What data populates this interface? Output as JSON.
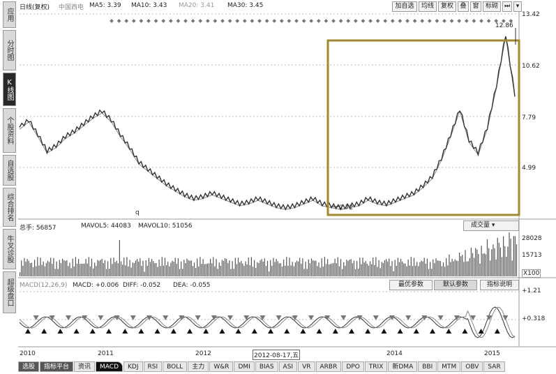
{
  "left_nav": [
    {
      "label": "应用",
      "active": false
    },
    {
      "label": "分时图",
      "active": false
    },
    {
      "label": "K线图",
      "active": true
    },
    {
      "label": "个股资料",
      "active": false
    },
    {
      "label": "自选股",
      "active": false
    },
    {
      "label": "综合排名",
      "active": false
    },
    {
      "label": "牛叉诊股",
      "active": false
    },
    {
      "label": "超级盘口",
      "active": false
    }
  ],
  "price_header": {
    "period": "日线(复权)",
    "name": "中国西电",
    "ma5": "MA5: 3.39",
    "ma10": "MA10: 3.43",
    "ma20": "MA20: 3.41",
    "ma30": "MA30: 3.45"
  },
  "toolbar": {
    "add_watch": "加自选",
    "avg_line": "均线",
    "restore": "复权",
    "overlay": "叠",
    "window": "窗",
    "marker": "标砌"
  },
  "price_axis": [
    "13.42",
    "10.62",
    "7.79",
    "4.99"
  ],
  "annotations": {
    "high": "12.86",
    "low": "2.72",
    "marker_q": "q"
  },
  "volume_header": {
    "hand": "总手: 56857",
    "mavol5": "MAVOL5: 44083",
    "mavol10": "MAVOL10: 51056",
    "selector": "成交量"
  },
  "volume_axis": {
    "top": "28028",
    "mid": "15713",
    "unit": "X100"
  },
  "macd_header": {
    "params": "MACD(12,26,9)",
    "macd": "MACD: +0.006",
    "diff": "DIFF: -0.052",
    "dea": "DEA: -0.055",
    "btn_opt": "最优参数",
    "btn_default": "默认参数",
    "btn_help": "指标说明"
  },
  "macd_axis": [
    "+1.21",
    "+0.318"
  ],
  "date_axis": [
    "2010",
    "2011",
    "2012",
    "2012-08-17,五",
    "2014",
    "2015"
  ],
  "bottom_tabs": [
    {
      "label": "选股",
      "style": "dark"
    },
    {
      "label": "指标平台",
      "style": "dark"
    },
    {
      "label": "资讯",
      "style": ""
    },
    {
      "label": "MACD",
      "style": "active"
    },
    {
      "label": "KDJ",
      "style": ""
    },
    {
      "label": "RSI",
      "style": ""
    },
    {
      "label": "BOLL",
      "style": ""
    },
    {
      "label": "主力",
      "style": ""
    },
    {
      "label": "W&R",
      "style": ""
    },
    {
      "label": "DMI",
      "style": ""
    },
    {
      "label": "BIAS",
      "style": ""
    },
    {
      "label": "ASI",
      "style": ""
    },
    {
      "label": "VR",
      "style": ""
    },
    {
      "label": "ARBR",
      "style": ""
    },
    {
      "label": "DPO",
      "style": ""
    },
    {
      "label": "TRIX",
      "style": ""
    },
    {
      "label": "新DMA",
      "style": ""
    },
    {
      "label": "BBI",
      "style": ""
    },
    {
      "label": "MTM",
      "style": ""
    },
    {
      "label": "OBV",
      "style": ""
    },
    {
      "label": "SAR",
      "style": ""
    }
  ],
  "chart_data": {
    "type": "line",
    "x_start": "2010",
    "x_end": "2015",
    "price_close_approx": [
      7.2,
      7.6,
      6.8,
      5.9,
      6.2,
      6.7,
      7.0,
      7.4,
      7.8,
      8.1,
      7.6,
      6.8,
      6.1,
      5.3,
      4.9,
      4.5,
      4.1,
      3.8,
      3.5,
      3.3,
      3.4,
      3.6,
      3.4,
      3.2,
      3.0,
      3.1,
      3.3,
      3.1,
      2.9,
      2.8,
      2.9,
      3.1,
      3.3,
      3.0,
      2.9,
      2.8,
      2.9,
      3.0,
      3.3,
      3.1,
      3.0,
      3.2,
      3.4,
      3.6,
      4.0,
      4.5,
      5.5,
      6.8,
      8.2,
      6.5,
      5.8,
      7.2,
      9.5,
      12.3,
      9.0
    ],
    "price_ylim": [
      2.5,
      13.42
    ],
    "colors": {
      "highlight_box": "#a08a30",
      "price_line": "#333333",
      "ma_line": "#888888"
    }
  }
}
